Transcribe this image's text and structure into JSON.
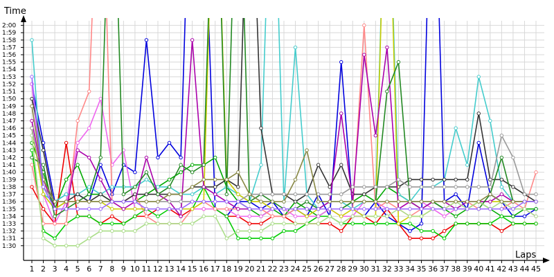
{
  "chart_data": {
    "type": "line",
    "ylabel": "Time",
    "xlabel": "Laps",
    "grid": true,
    "x": [
      1,
      2,
      3,
      4,
      5,
      6,
      7,
      8,
      9,
      10,
      11,
      12,
      13,
      14,
      15,
      16,
      17,
      18,
      19,
      20,
      21,
      22,
      23,
      24,
      25,
      26,
      27,
      28,
      29,
      30,
      31,
      32,
      33,
      34,
      35,
      36,
      37,
      38,
      39,
      40,
      41,
      42,
      43,
      44,
      45
    ],
    "x_tick_labels": [
      "1",
      "2",
      "3",
      "4",
      "5",
      "6",
      "7",
      "8",
      "9",
      "10",
      "11",
      "12",
      "13",
      "14",
      "15",
      "16",
      "17",
      "18",
      "19",
      "20",
      "21",
      "22",
      "23",
      "24",
      "25",
      "26",
      "27",
      "28",
      "29",
      "30",
      "31",
      "32",
      "33",
      "34",
      "35",
      "36",
      "37",
      "38",
      "39",
      "40",
      "41",
      "42",
      "43",
      "44",
      "45"
    ],
    "ylim": [
      88,
      121
    ],
    "y_ticks": [
      90,
      91,
      92,
      93,
      94,
      95,
      96,
      97,
      98,
      99,
      100,
      101,
      102,
      103,
      104,
      105,
      106,
      107,
      108,
      109,
      110,
      111,
      112,
      113,
      114,
      115,
      116,
      117,
      118,
      119,
      120
    ],
    "y_tick_labels": [
      "1:30",
      "1:31",
      "1:32",
      "1:33",
      "1:34",
      "1:35",
      "1:36",
      "1:37",
      "1:38",
      "1:39",
      "1:40",
      "1:41",
      "1:42",
      "1:43",
      "1:44",
      "1:45",
      "1:46",
      "1:47",
      "1:48",
      "1:49",
      "1:50",
      "1:51",
      "1:52",
      "1:53",
      "1:54",
      "1:55",
      "1:56",
      "1:57",
      "1:58",
      "1:59",
      "2:00"
    ],
    "series": [
      {
        "color": "#0000dd",
        "values": [
          112,
          104,
          96,
          97,
          97,
          96,
          101,
          97,
          101,
          100,
          118,
          102,
          104,
          102,
          152,
          140,
          95,
          94,
          96,
          96,
          95,
          96,
          94,
          95,
          94,
          97,
          94,
          115,
          95,
          94,
          96,
          94,
          93,
          92,
          93,
          152,
          96,
          97,
          95,
          104,
          97,
          96,
          94,
          94,
          95
        ]
      },
      {
        "color": "#00aa00",
        "values": [
          104,
          100,
          95,
          99,
          101,
          97,
          97,
          96,
          96,
          96,
          97,
          98,
          99,
          100,
          101,
          101,
          102,
          98,
          96,
          95,
          94,
          95,
          94,
          96,
          95,
          94,
          95,
          95,
          96,
          97,
          96,
          98,
          97,
          96,
          95,
          96,
          95,
          94,
          95,
          96,
          95,
          94,
          94,
          95,
          95
        ]
      },
      {
        "color": "#ee0000",
        "values": [
          98,
          95,
          93,
          104,
          94,
          94,
          93,
          94,
          93,
          94,
          94,
          95,
          95,
          94,
          95,
          95,
          95,
          94,
          94,
          93,
          93,
          94,
          94,
          93,
          93,
          93,
          93,
          92,
          94,
          94,
          93,
          95,
          93,
          91,
          91,
          91,
          92,
          93,
          93,
          93,
          93,
          92,
          93,
          93,
          93
        ]
      },
      {
        "color": "#00cc00",
        "values": [
          103,
          92,
          91,
          93,
          94,
          94,
          93,
          93,
          93,
          94,
          95,
          94,
          95,
          95,
          95,
          98,
          95,
          94,
          91,
          91,
          91,
          91,
          92,
          92,
          93,
          94,
          94,
          93,
          93,
          93,
          93,
          93,
          93,
          93,
          92,
          92,
          91,
          93,
          93,
          93,
          93,
          94,
          93,
          93,
          93
        ]
      },
      {
        "color": "#ee66ee",
        "values": [
          112,
          97,
          93,
          96,
          104,
          106,
          110,
          101,
          103,
          95,
          95,
          95,
          95,
          95,
          95,
          95,
          95,
          95,
          94,
          94,
          94,
          95,
          95,
          94,
          94,
          94,
          95,
          94,
          94,
          96,
          96,
          95,
          95,
          96,
          96,
          95,
          94,
          95,
          95,
          95,
          95,
          95,
          95,
          95,
          94
        ]
      },
      {
        "color": "#ff8888",
        "values": [
          101,
          93,
          93,
          93,
          107,
          111,
          150,
          96,
          96,
          97,
          94,
          93,
          93,
          93,
          95,
          96,
          95,
          95,
          95,
          95,
          95,
          94,
          94,
          95,
          95,
          95,
          95,
          95,
          95,
          120,
          95,
          96,
          95,
          94,
          95,
          95,
          95,
          96,
          96,
          95,
          95,
          95,
          96,
          95,
          100
        ]
      },
      {
        "color": "#44cccc",
        "values": [
          118,
          97,
          96,
          97,
          97,
          98,
          97,
          98,
          98,
          98,
          99,
          98,
          98,
          97,
          97,
          98,
          97,
          98,
          97,
          96,
          101,
          150,
          96,
          117,
          97,
          95,
          96,
          96,
          95,
          96,
          96,
          150,
          97,
          96,
          98,
          98,
          99,
          106,
          101,
          113,
          107,
          98,
          96,
          96,
          96
        ]
      },
      {
        "color": "#333333",
        "values": [
          110,
          103,
          95,
          96,
          97,
          96,
          97,
          96,
          96,
          97,
          97,
          97,
          97,
          97,
          98,
          98,
          98,
          99,
          98,
          150,
          106,
          97,
          97,
          96,
          97,
          101,
          98,
          101,
          97,
          97,
          98,
          98,
          98,
          99,
          99,
          99,
          99,
          99,
          99,
          108,
          99,
          99,
          98,
          97,
          96
        ]
      },
      {
        "color": "#cccc00",
        "values": [
          106,
          97,
          95,
          96,
          96,
          96,
          96,
          95,
          95,
          95,
          95,
          95,
          95,
          95,
          95,
          96,
          150,
          99,
          97,
          96,
          96,
          95,
          95,
          95,
          94,
          95,
          95,
          94,
          95,
          94,
          94,
          150,
          93,
          94,
          94,
          95,
          95,
          95,
          95,
          96,
          96,
          96,
          96,
          96,
          96
        ]
      },
      {
        "color": "#aa00aa",
        "values": [
          107,
          99,
          95,
          95,
          103,
          102,
          99,
          96,
          95,
          96,
          102,
          97,
          96,
          94,
          118,
          98,
          97,
          96,
          95,
          95,
          95,
          95,
          95,
          95,
          95,
          95,
          96,
          108,
          96,
          116,
          105,
          117,
          95,
          96,
          95,
          96,
          96,
          95,
          96,
          96,
          96,
          97,
          96,
          96,
          96
        ]
      },
      {
        "color": "#228822",
        "values": [
          102,
          101,
          94,
          95,
          96,
          97,
          102,
          150,
          97,
          98,
          100,
          97,
          98,
          101,
          100,
          101,
          150,
          97,
          150,
          96,
          97,
          96,
          95,
          95,
          96,
          95,
          95,
          95,
          96,
          96,
          96,
          111,
          115,
          96,
          96,
          96,
          95,
          95,
          95,
          95,
          97,
          102,
          96,
          96,
          96
        ]
      },
      {
        "color": "#aadd88",
        "values": [
          105,
          91,
          90,
          90,
          90,
          91,
          92,
          92,
          92,
          92,
          93,
          93,
          93,
          93,
          93,
          94,
          94,
          91,
          92,
          92,
          92,
          93,
          93,
          93,
          93,
          93,
          94,
          93,
          94,
          94,
          94,
          94,
          95,
          94,
          94,
          95,
          95,
          96,
          95,
          96,
          95,
          96,
          95,
          95,
          94
        ]
      },
      {
        "color": "#999999",
        "values": [
          106,
          98,
          96,
          96,
          96,
          96,
          96,
          96,
          96,
          96,
          96,
          96,
          96,
          96,
          96,
          96,
          96,
          96,
          96,
          97,
          97,
          97,
          97,
          97,
          97,
          97,
          97,
          97,
          98,
          98,
          98,
          98,
          99,
          98,
          98,
          98,
          98,
          98,
          98,
          98,
          98,
          105,
          102,
          97,
          97
        ]
      },
      {
        "color": "#888844",
        "values": [
          109,
          99,
          96,
          96,
          96,
          96,
          96,
          96,
          96,
          96,
          96,
          96,
          97,
          97,
          98,
          99,
          99,
          99,
          100,
          97,
          96,
          96,
          96,
          99,
          103,
          96,
          96,
          96,
          96,
          96,
          96,
          96,
          96,
          96,
          96,
          96,
          96,
          96,
          96,
          96,
          97,
          96,
          96,
          96,
          96
        ]
      },
      {
        "color": "#9966ff",
        "values": [
          113,
          98,
          95,
          95,
          95,
          95,
          95,
          96,
          96,
          96,
          95,
          95,
          95,
          95,
          96,
          96,
          96,
          96,
          96,
          95,
          95,
          95,
          95,
          95,
          95,
          95,
          95,
          95,
          95,
          95,
          95,
          95,
          95,
          95,
          95,
          95,
          95,
          95,
          95,
          95,
          95,
          95,
          95,
          96,
          96
        ]
      }
    ]
  }
}
